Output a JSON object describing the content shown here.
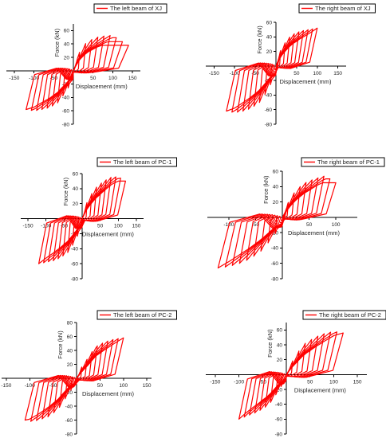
{
  "figure": {
    "line_color": "#ff0000"
  },
  "chart_data": [
    {
      "type": "line",
      "legend": "The left beam of XJ",
      "legend_position": "top-right",
      "xlabel": "Displacement (mm)",
      "ylabel": "Force (kN)",
      "xlim": [
        -170,
        170
      ],
      "ylim": [
        -80,
        70
      ],
      "xticks": [
        -150,
        -100,
        -50,
        50,
        100,
        150
      ],
      "yticks": [
        -80,
        -60,
        -40,
        -20,
        20,
        40,
        60
      ],
      "xticklabels": [
        "-150",
        "-100",
        "-50",
        "50",
        "100",
        "150"
      ],
      "yticklabels": [
        "-80",
        "-60",
        "-40",
        "-20",
        "20",
        "40",
        "60"
      ],
      "envelope": {
        "pos_d": [
          10,
          20,
          30,
          40,
          60,
          80,
          100,
          120,
          140
        ],
        "pos_f": [
          22,
          32,
          40,
          45,
          50,
          52,
          53,
          45,
          38
        ],
        "neg_d": [
          -10,
          -20,
          -30,
          -40,
          -60,
          -80,
          -100,
          -120
        ],
        "neg_f": [
          -22,
          -33,
          -40,
          -48,
          -55,
          -58,
          -60,
          -58
        ]
      }
    },
    {
      "type": "line",
      "legend": "The right beam of XJ",
      "legend_position": "top-right",
      "xlabel": "Displacement (mm)",
      "ylabel": "Force (kN)",
      "xlim": [
        -170,
        170
      ],
      "ylim": [
        -80,
        60
      ],
      "xticks": [
        -150,
        -100,
        -50,
        50,
        100,
        150
      ],
      "yticks": [
        -80,
        -60,
        -40,
        -20,
        20,
        40,
        60
      ],
      "xticklabels": [
        "-150",
        "-100",
        "-50",
        "50",
        "100",
        "150"
      ],
      "yticklabels": [
        "-80",
        "-60",
        "-40",
        "-20",
        "20",
        "40",
        "60"
      ],
      "envelope": {
        "pos_d": [
          10,
          20,
          30,
          40,
          60,
          80,
          100
        ],
        "pos_f": [
          20,
          30,
          38,
          43,
          48,
          50,
          52
        ],
        "neg_d": [
          -10,
          -20,
          -30,
          -40,
          -60,
          -80,
          -100,
          -120
        ],
        "neg_f": [
          -22,
          -33,
          -42,
          -50,
          -58,
          -62,
          -64,
          -62
        ]
      }
    },
    {
      "type": "line",
      "legend": "The left beam of PC-1",
      "legend_position": "top-right",
      "xlabel": "Displacement (mm)",
      "ylabel": "Force (kN)",
      "xlim": [
        -170,
        170
      ],
      "ylim": [
        -80,
        60
      ],
      "xticks": [
        -150,
        -100,
        -50,
        50,
        100,
        150
      ],
      "yticks": [
        -80,
        -60,
        -40,
        -20,
        20,
        40,
        60
      ],
      "xticklabels": [
        "-150",
        "-100",
        "-50",
        "50",
        "100",
        "150"
      ],
      "yticklabels": [
        "-80",
        "-60",
        "-40",
        "-20",
        "20",
        "40",
        "60"
      ],
      "envelope": {
        "pos_d": [
          10,
          20,
          30,
          40,
          60,
          80,
          100,
          120
        ],
        "pos_f": [
          18,
          28,
          36,
          42,
          50,
          55,
          56,
          50
        ],
        "neg_d": [
          -10,
          -20,
          -30,
          -40,
          -60,
          -80,
          -100,
          -120
        ],
        "neg_f": [
          -20,
          -30,
          -38,
          -45,
          -52,
          -56,
          -58,
          -60
        ]
      }
    },
    {
      "type": "line",
      "legend": "The right beam of PC-1",
      "legend_position": "top-right",
      "xlabel": "Displacement (mm)",
      "ylabel": "Force (kN)",
      "xlim": [
        -140,
        140
      ],
      "ylim": [
        -80,
        60
      ],
      "xticks": [
        -100,
        -50,
        50,
        100
      ],
      "yticks": [
        -80,
        -60,
        -40,
        -20,
        20,
        40,
        60
      ],
      "xticklabels": [
        "-100",
        "-50",
        "50",
        "100"
      ],
      "yticklabels": [
        "-80",
        "-60",
        "-40",
        "-20",
        "20",
        "40",
        "60"
      ],
      "envelope": {
        "pos_d": [
          10,
          20,
          30,
          40,
          60,
          80,
          100
        ],
        "pos_f": [
          18,
          30,
          38,
          44,
          50,
          54,
          45
        ],
        "neg_d": [
          -10,
          -20,
          -30,
          -40,
          -60,
          -80,
          -100,
          -120
        ],
        "neg_f": [
          -18,
          -28,
          -36,
          -44,
          -54,
          -60,
          -64,
          -66
        ]
      }
    },
    {
      "type": "line",
      "legend": "The left beam of PC-2",
      "legend_position": "top-right",
      "xlabel": "Displacement (mm)",
      "ylabel": "Force (kN)",
      "xlim": [
        -160,
        160
      ],
      "ylim": [
        -80,
        80
      ],
      "xticks": [
        -150,
        -100,
        -50,
        50,
        100,
        150
      ],
      "yticks": [
        -80,
        -60,
        -40,
        -20,
        20,
        40,
        60,
        80
      ],
      "xticklabels": [
        "-150",
        "-100",
        "-50",
        "50",
        "100",
        "150"
      ],
      "yticklabels": [
        "-80",
        "-60",
        "-40",
        "-20",
        "20",
        "40",
        "60",
        "80"
      ],
      "envelope": {
        "pos_d": [
          10,
          20,
          30,
          40,
          60,
          80,
          100
        ],
        "pos_f": [
          15,
          25,
          35,
          45,
          52,
          56,
          58
        ],
        "neg_d": [
          -10,
          -20,
          -30,
          -40,
          -60,
          -80,
          -100,
          -110
        ],
        "neg_f": [
          -15,
          -25,
          -35,
          -45,
          -55,
          -60,
          -62,
          -60
        ]
      }
    },
    {
      "type": "line",
      "legend": "The right beam of PC-2",
      "legend_position": "top-right",
      "xlabel": "Displacement (mm)",
      "ylabel": "Force (kN)",
      "xlim": [
        -170,
        170
      ],
      "ylim": [
        -80,
        70
      ],
      "xticks": [
        -150,
        -100,
        -50,
        50,
        100,
        150
      ],
      "yticks": [
        -80,
        -60,
        -40,
        -20,
        20,
        40,
        60
      ],
      "xticklabels": [
        "-150",
        "-100",
        "-50",
        "50",
        "100",
        "150"
      ],
      "yticklabels": [
        "-80",
        "-60",
        "-40",
        "-20",
        "20",
        "40",
        "60"
      ],
      "envelope": {
        "pos_d": [
          10,
          20,
          30,
          40,
          60,
          80,
          100,
          120
        ],
        "pos_f": [
          15,
          25,
          35,
          42,
          50,
          55,
          58,
          56
        ],
        "neg_d": [
          -10,
          -20,
          -30,
          -40,
          -60,
          -80,
          -100
        ],
        "neg_f": [
          -15,
          -25,
          -35,
          -42,
          -50,
          -55,
          -60
        ]
      }
    }
  ]
}
